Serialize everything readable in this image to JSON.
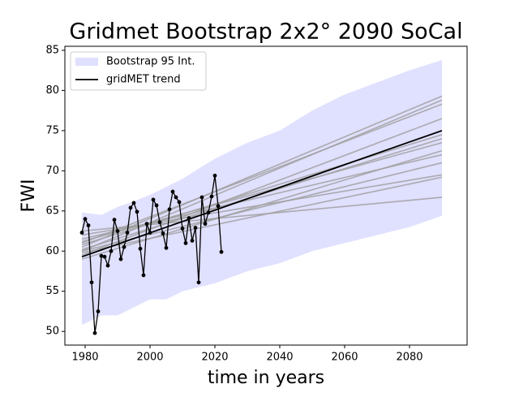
{
  "chart_data": {
    "type": "line",
    "title": "Gridmet Bootstrap 2x2° 2090 SoCal",
    "x_label": "time in years",
    "y_label": "FWI",
    "xlim": [
      1973.75,
      2097.75
    ],
    "ylim": [
      48.3,
      85.5
    ],
    "xticks": [
      1980,
      2000,
      2020,
      2040,
      2060,
      2080
    ],
    "yticks": [
      50,
      55,
      60,
      65,
      70,
      75,
      80,
      85
    ],
    "legend": "upper left",
    "series": [
      {
        "name": "Bootstrap 95 Int.",
        "kind": "band",
        "color": "#e0e0ff",
        "x": [
          1979,
          1985,
          1990,
          1995,
          2000,
          2005,
          2010,
          2020,
          2030,
          2040,
          2050,
          2060,
          2070,
          2080,
          2090
        ],
        "upper": [
          64.8,
          64.5,
          65.5,
          66.2,
          67,
          68,
          69,
          71.5,
          73.5,
          75,
          77.5,
          79.5,
          81,
          82.5,
          83.8
        ],
        "lower": [
          50.8,
          52,
          52,
          53,
          54,
          54,
          55,
          56,
          57.5,
          58.5,
          60,
          61,
          62,
          63,
          64.4
        ]
      },
      {
        "name": "gridMET trend",
        "kind": "line",
        "color": "#000000",
        "x": [
          1979,
          2090
        ],
        "values": [
          59.3,
          75.0
        ]
      }
    ],
    "bootstrap_trends": {
      "color": "#a0a0a0",
      "x": [
        1979,
        2090
      ],
      "lines": [
        [
          60.5,
          79.3
        ],
        [
          60,
          78.8
        ],
        [
          61,
          78.3
        ],
        [
          59.5,
          76.5
        ],
        [
          60.8,
          74.5
        ],
        [
          60.2,
          74
        ],
        [
          61.2,
          73.5
        ],
        [
          59,
          72.5
        ],
        [
          61.5,
          72
        ],
        [
          60,
          71
        ],
        [
          62,
          69.5
        ],
        [
          59.8,
          69.2
        ],
        [
          62.5,
          66.7
        ]
      ]
    },
    "observed": {
      "color": "#000000",
      "x": [
        1979,
        1980,
        1981,
        1982,
        1983,
        1984,
        1985,
        1986,
        1987,
        1988,
        1989,
        1990,
        1991,
        1992,
        1993,
        1994,
        1995,
        1996,
        1997,
        1998,
        1999,
        2000,
        2001,
        2002,
        2003,
        2004,
        2005,
        2006,
        2007,
        2008,
        2009,
        2010,
        2011,
        2012,
        2013,
        2014,
        2015,
        2016,
        2017,
        2018,
        2019,
        2020,
        2021,
        2022
      ],
      "values": [
        62.3,
        64.0,
        63.2,
        56.1,
        49.8,
        52.5,
        59.4,
        59.3,
        58.2,
        60.0,
        63.9,
        62.5,
        59.0,
        60.5,
        62.3,
        65.4,
        66.0,
        64.9,
        60.3,
        57.0,
        63.4,
        62.3,
        66.4,
        65.7,
        63.6,
        62.2,
        60.4,
        65.2,
        67.4,
        66.7,
        66.1,
        62.8,
        61.0,
        64.1,
        61.3,
        62.9,
        56.1,
        66.7,
        63.4,
        64.8,
        66.8,
        69.4,
        65.6,
        59.9
      ]
    }
  }
}
